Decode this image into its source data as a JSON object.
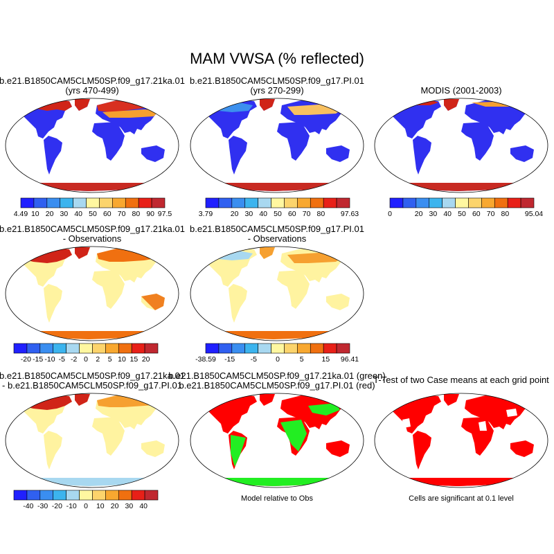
{
  "figure": {
    "title": "MAM VWSA (% reflected)"
  },
  "chart_data": [
    {
      "type": "heatmap",
      "id": "p1",
      "title_line1": "b.e21.B1850CAM5CLM50SP.f09_g17.21ka.01",
      "title_line2": "(yrs 470-499)",
      "colorbar": {
        "colors": [
          "#2020ff",
          "#3060f0",
          "#3a8ef0",
          "#3cb4ee",
          "#a8d8f0",
          "#fff7a0",
          "#fcd46c",
          "#f8a830",
          "#f07010",
          "#e82018",
          "#c02830"
        ],
        "tick_labels": [
          "4.49",
          "10",
          "20",
          "30",
          "40",
          "50",
          "60",
          "70",
          "80",
          "90",
          "97.5"
        ]
      }
    },
    {
      "type": "heatmap",
      "id": "p2",
      "title_line1": "b.e21.B1850CAM5CLM50SP.f09_g17.PI.01",
      "title_line2": "(yrs 270-299)",
      "colorbar": {
        "colors": [
          "#2020ff",
          "#3060f0",
          "#3a8ef0",
          "#3cb4ee",
          "#a8d8f0",
          "#fff7a0",
          "#fcd46c",
          "#f8a830",
          "#f07010",
          "#e82018",
          "#c02830"
        ],
        "tick_labels": [
          "3.79",
          "",
          "20",
          "30",
          "40",
          "50",
          "60",
          "70",
          "80",
          "",
          "97.63"
        ]
      }
    },
    {
      "type": "heatmap",
      "id": "p3",
      "title_line1": "MODIS (2001-2003)",
      "title_line2": "",
      "colorbar": {
        "colors": [
          "#2020ff",
          "#3060f0",
          "#3a8ef0",
          "#3cb4ee",
          "#a8d8f0",
          "#fff7a0",
          "#fcd46c",
          "#f8a830",
          "#f07010",
          "#e82018",
          "#c02830"
        ],
        "tick_labels": [
          "0",
          "",
          "20",
          "30",
          "40",
          "50",
          "60",
          "70",
          "80",
          "",
          "95.04"
        ]
      }
    },
    {
      "type": "heatmap",
      "id": "p4",
      "title_line1": "b.e21.B1850CAM5CLM50SP.f09_g17.21ka.01",
      "title_line2": "- Observations",
      "colorbar": {
        "colors": [
          "#2020ff",
          "#3060f0",
          "#3a8ef0",
          "#3cb4ee",
          "#a8d8f0",
          "#fff7a0",
          "#fcd46c",
          "#f8a830",
          "#f07010",
          "#e82018",
          "#c02830"
        ],
        "tick_labels": [
          "",
          "-20",
          "-15",
          "-10",
          "-5",
          "-2",
          "0",
          "2",
          "5",
          "10",
          "15",
          "20",
          ""
        ]
      }
    },
    {
      "type": "heatmap",
      "id": "p5",
      "title_line1": "b.e21.B1850CAM5CLM50SP.f09_g17.PI.01",
      "title_line2": "- Observations",
      "colorbar": {
        "colors": [
          "#2020ff",
          "#3060f0",
          "#3a8ef0",
          "#3cb4ee",
          "#a8d8f0",
          "#fff7a0",
          "#fcd46c",
          "#f8a830",
          "#f07010",
          "#e82018",
          "#c02830"
        ],
        "tick_labels": [
          "-38.59",
          "",
          "-15",
          "",
          "-5",
          "",
          "0",
          "",
          "5",
          "",
          "15",
          "",
          "96.41"
        ]
      }
    },
    {
      "type": "heatmap",
      "id": "p7",
      "title_line1": "b.e21.B1850CAM5CLM50SP.f09_g17.21ka.01",
      "title_line2": "- b.e21.B1850CAM5CLM50SP.f09_g17.PI.01",
      "colorbar": {
        "colors": [
          "#2020ff",
          "#3060f0",
          "#3a8ef0",
          "#3cb4ee",
          "#a8d8f0",
          "#fff7a0",
          "#fcd46c",
          "#f8a830",
          "#f07010",
          "#e82018",
          "#c02830"
        ],
        "tick_labels": [
          "",
          "-40",
          "-30",
          "-20",
          "-10",
          "0",
          "10",
          "20",
          "30",
          "40",
          ""
        ]
      }
    },
    {
      "type": "heatmap",
      "id": "p8",
      "title_line1": "b.e21.B1850CAM5CLM50SP.f09_g17.21ka.01 (green)",
      "title_line2": "b.e21.B1850CAM5CLM50SP.f09_g17.PI.01 (red)",
      "caption": "Model relative to Obs"
    },
    {
      "type": "heatmap",
      "id": "p9",
      "title_line1": "T-Test of two Case means at each grid point",
      "title_line2": "",
      "caption": "Cells are significant at 0.1 level"
    }
  ]
}
